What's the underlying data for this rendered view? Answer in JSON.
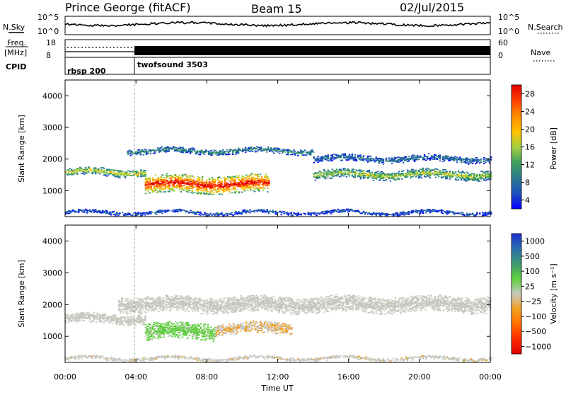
{
  "header": {
    "station": "Prince George (fitACF)",
    "beam": "Beam 15",
    "date": "02/Jul/2015"
  },
  "top_panels": {
    "nsky_label": "N.Sky",
    "nsky_hi": "10^5",
    "nsky_lo": "10^0",
    "nsearch_label": "N.Search",
    "nsearch_hi": "10^5",
    "nsearch_lo": "10^0",
    "freq_label": "Freq.",
    "freq_unit": "[MHz]",
    "freq_hi": "18",
    "freq_lo": "8",
    "nave_label": "Nave",
    "nave_hi": "60",
    "nave_lo": "0",
    "cpid_label": "CPID",
    "cpid_segments": [
      {
        "name": "rbsp 200",
        "start_hour": 0,
        "end_hour": 4
      },
      {
        "name": "twofsound 3503",
        "start_hour": 4,
        "end_hour": 24
      }
    ]
  },
  "power_colorbar": {
    "label": "Power [dB]",
    "ticks": [
      "28",
      "24",
      "20",
      "16",
      "12",
      "8",
      "4"
    ],
    "colors": [
      "#e00000",
      "#ff4000",
      "#ff8c00",
      "#ffc000",
      "#a8d040",
      "#40a060",
      "#2a7a8c",
      "#2050c0",
      "#0000ff"
    ]
  },
  "velocity_colorbar": {
    "label": "Velocity [m s⁻¹]",
    "ticks": [
      "1000",
      "500",
      "100",
      "25",
      "−25",
      "−100",
      "−500",
      "−1000"
    ],
    "colors": [
      "#1a2ed0",
      "#2a70b0",
      "#3d9a70",
      "#60d040",
      "#c8c8c0",
      "#f0a020",
      "#ff7000",
      "#ff2a00",
      "#e00000"
    ]
  },
  "chart_data": [
    {
      "type": "heatmap",
      "title": "",
      "xlabel": "Time UT",
      "ylabel": "Slant Range [km]",
      "xlim": [
        0,
        24
      ],
      "ylim": [
        180,
        4500
      ],
      "x_ticks": [
        "00:00",
        "04:00",
        "08:00",
        "12:00",
        "16:00",
        "20:00",
        "00:00"
      ],
      "y_ticks": [
        1000,
        2000,
        3000,
        4000
      ],
      "colorbar_label": "Power [dB]",
      "colorbar_range": [
        0,
        30
      ],
      "features": [
        {
          "t0": 0.0,
          "t1": 4.5,
          "range": 1580,
          "width": 120,
          "power": 17
        },
        {
          "t0": 4.5,
          "t1": 11.5,
          "range": 1200,
          "width": 280,
          "power": 28
        },
        {
          "t0": 3.5,
          "t1": 14.0,
          "range": 2250,
          "width": 90,
          "power": 10
        },
        {
          "t0": 14.0,
          "t1": 24.0,
          "range": 1500,
          "width": 140,
          "power": 16
        },
        {
          "t0": 14.0,
          "t1": 24.0,
          "range": 2000,
          "width": 100,
          "power": 8
        },
        {
          "t0": 0.0,
          "t1": 24.0,
          "range": 300,
          "width": 60,
          "power": 6
        }
      ]
    },
    {
      "type": "heatmap",
      "title": "",
      "xlabel": "Time UT",
      "ylabel": "Slant Range [km]",
      "xlim": [
        0,
        24
      ],
      "ylim": [
        180,
        4500
      ],
      "x_ticks": [
        "00:00",
        "04:00",
        "08:00",
        "12:00",
        "16:00",
        "20:00",
        "00:00"
      ],
      "y_ticks": [
        1000,
        2000,
        3000,
        4000
      ],
      "colorbar_label": "Velocity [m s⁻¹]",
      "colorbar_range": [
        -1000,
        1000
      ],
      "features": [
        {
          "t0": 0.0,
          "t1": 4.5,
          "range": 1550,
          "width": 150,
          "velocity": 0
        },
        {
          "t0": 4.5,
          "t1": 8.5,
          "range": 1150,
          "width": 260,
          "velocity": 150
        },
        {
          "t0": 8.5,
          "t1": 12.8,
          "range": 1250,
          "width": 180,
          "velocity": -100
        },
        {
          "t0": 3.0,
          "t1": 24.0,
          "range": 2000,
          "width": 250,
          "velocity": 0
        },
        {
          "t0": 0.0,
          "t1": 24.0,
          "range": 300,
          "width": 60,
          "velocity": -60
        }
      ]
    }
  ]
}
